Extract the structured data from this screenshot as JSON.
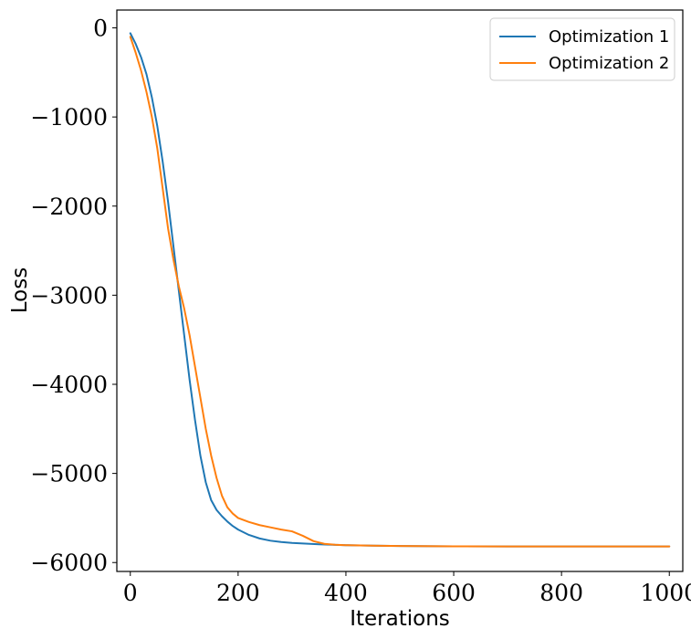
{
  "chart_data": {
    "type": "line",
    "title": "",
    "xlabel": "Iterations",
    "ylabel": "Loss",
    "xlim": [
      -25,
      1025
    ],
    "ylim": [
      -6100,
      200
    ],
    "xticks": [
      0,
      200,
      400,
      600,
      800,
      1000
    ],
    "xtick_labels": [
      "0",
      "200",
      "400",
      "600",
      "800",
      "1000"
    ],
    "yticks": [
      0,
      -1000,
      -2000,
      -3000,
      -4000,
      -5000,
      -6000
    ],
    "ytick_labels": [
      "0",
      "−1000",
      "−2000",
      "−3000",
      "−4000",
      "−5000",
      "−6000"
    ],
    "grid": false,
    "legend_position": "top-right",
    "series": [
      {
        "name": "Optimization 1",
        "color": "#1f77b4",
        "x": [
          0,
          10,
          20,
          30,
          40,
          50,
          60,
          70,
          80,
          90,
          100,
          110,
          120,
          130,
          140,
          150,
          160,
          170,
          180,
          190,
          200,
          220,
          240,
          260,
          280,
          300,
          350,
          400,
          450,
          500,
          600,
          700,
          800,
          900,
          1000
        ],
        "y": [
          -60,
          -180,
          -330,
          -520,
          -780,
          -1100,
          -1500,
          -1950,
          -2450,
          -2950,
          -3450,
          -3950,
          -4400,
          -4800,
          -5100,
          -5300,
          -5410,
          -5480,
          -5540,
          -5590,
          -5630,
          -5690,
          -5730,
          -5755,
          -5770,
          -5780,
          -5795,
          -5805,
          -5810,
          -5815,
          -5818,
          -5819,
          -5820,
          -5820,
          -5820
        ]
      },
      {
        "name": "Optimization 2",
        "color": "#ff7f0e",
        "x": [
          0,
          10,
          20,
          30,
          40,
          50,
          60,
          70,
          80,
          90,
          100,
          110,
          120,
          130,
          140,
          150,
          160,
          170,
          180,
          190,
          200,
          220,
          240,
          260,
          280,
          300,
          320,
          340,
          360,
          380,
          400,
          450,
          500,
          600,
          700,
          800,
          900,
          1000
        ],
        "y": [
          -100,
          -280,
          -480,
          -720,
          -1000,
          -1350,
          -1800,
          -2250,
          -2600,
          -2900,
          -3150,
          -3450,
          -3800,
          -4150,
          -4500,
          -4800,
          -5050,
          -5250,
          -5380,
          -5450,
          -5500,
          -5545,
          -5580,
          -5605,
          -5630,
          -5650,
          -5700,
          -5760,
          -5790,
          -5800,
          -5805,
          -5810,
          -5815,
          -5818,
          -5819,
          -5820,
          -5820,
          -5820
        ]
      }
    ]
  }
}
